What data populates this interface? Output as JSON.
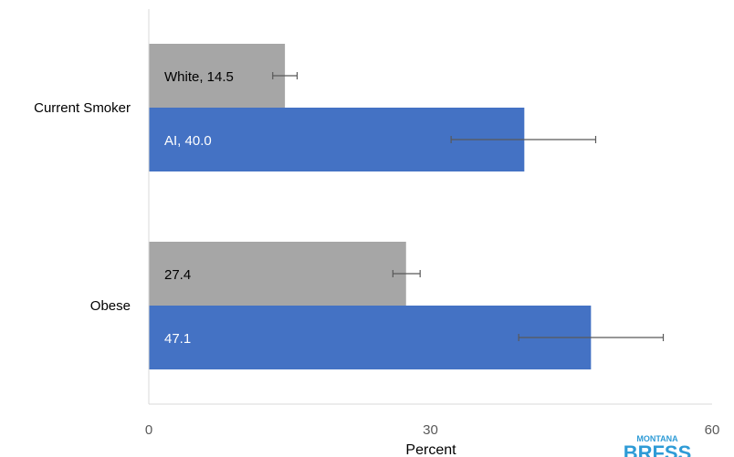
{
  "chart_data": {
    "type": "bar",
    "orientation": "horizontal",
    "categories": [
      "Current Smoker",
      "Obese"
    ],
    "series": [
      {
        "color": "#a6a6a6",
        "values": [
          14.5,
          27.4
        ],
        "error_low": [
          13.2,
          26.0
        ],
        "error_high": [
          15.8,
          28.9
        ],
        "labels": [
          "White, 14.5",
          "27.4"
        ],
        "label_color": "#000000"
      },
      {
        "color": "#4472c4",
        "values": [
          40.0,
          47.1
        ],
        "error_low": [
          32.2,
          39.4
        ],
        "error_high": [
          47.6,
          54.8
        ],
        "labels": [
          "AI, 40.0",
          "47.1"
        ],
        "label_color": "#ffffff"
      }
    ],
    "xlim": [
      0,
      60
    ],
    "xticks": [
      "0",
      "30",
      "60"
    ],
    "xlabel": "Percent",
    "ylabel": "",
    "grid": false,
    "legend": "none"
  },
  "logo": {
    "top_text": "MONTANA",
    "main_text": "BRFSS",
    "color": "#2e9bd6",
    "accent_color": "#2f8f4e"
  }
}
